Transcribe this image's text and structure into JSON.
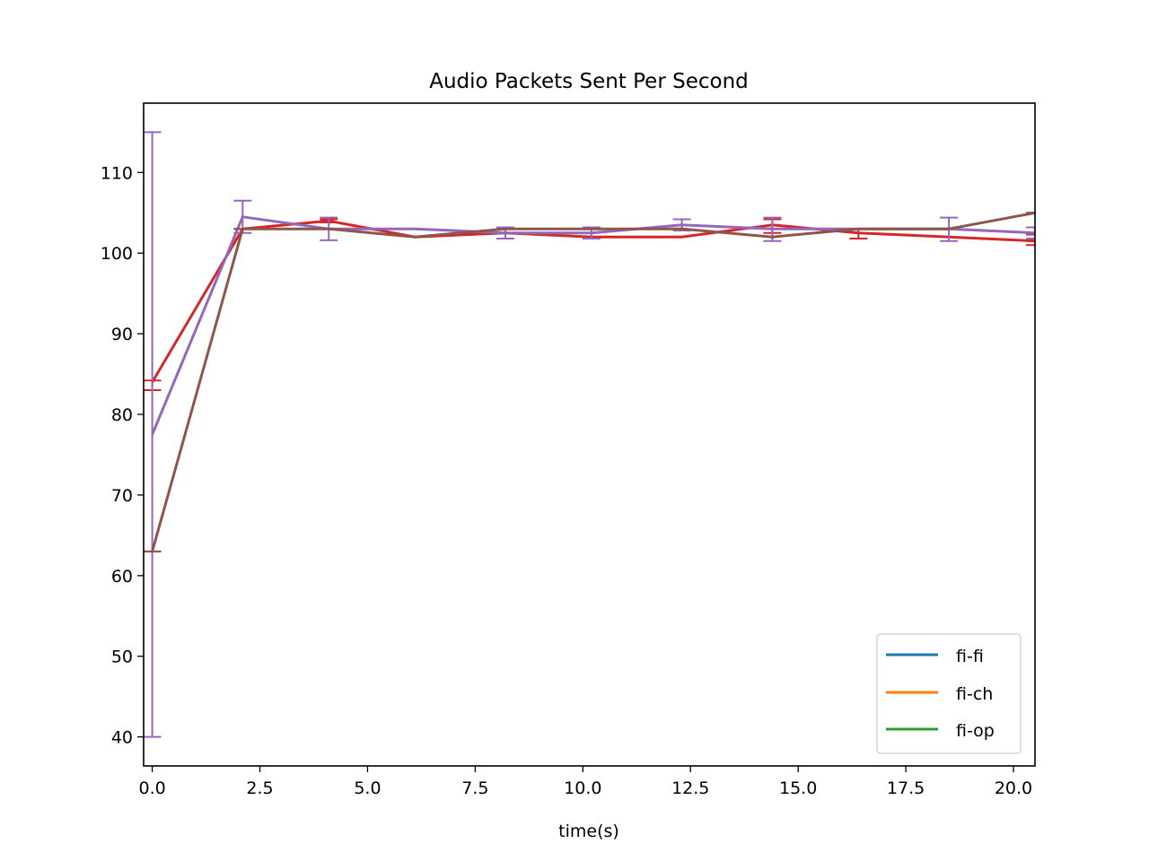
{
  "chart_data": {
    "type": "line",
    "title": "Audio Packets Sent Per Second",
    "xlabel": "time(s)",
    "ylabel": "",
    "xlim": [
      -0.2,
      20.5
    ],
    "ylim": [
      36.4,
      118.6
    ],
    "xticks": [
      0.0,
      2.5,
      5.0,
      7.5,
      10.0,
      12.5,
      15.0,
      17.5,
      20.0
    ],
    "xtick_labels": [
      "0.0",
      "2.5",
      "5.0",
      "7.5",
      "10.0",
      "12.5",
      "15.0",
      "17.5",
      "20.0"
    ],
    "yticks": [
      40,
      50,
      60,
      70,
      80,
      90,
      100,
      110
    ],
    "ytick_labels": [
      "40",
      "50",
      "60",
      "70",
      "80",
      "90",
      "100",
      "110"
    ],
    "grid": false,
    "legend_position": "bottom-right",
    "legend": [
      {
        "label": "fi-fi",
        "color": "#1f77b4"
      },
      {
        "label": "fi-ch",
        "color": "#ff7f0e"
      },
      {
        "label": "fi-op",
        "color": "#2ca02c"
      }
    ],
    "series": [
      {
        "color": "#d62728",
        "x": [
          0.0,
          2.1,
          4.1,
          6.1,
          8.2,
          10.2,
          12.3,
          14.4,
          16.4,
          18.5,
          20.5
        ],
        "y": [
          84.0,
          103.0,
          104.0,
          102.0,
          102.5,
          102.0,
          102.0,
          103.5,
          102.5,
          102.0,
          101.5
        ],
        "err_low": [
          83.0,
          103.0,
          103.8,
          102.0,
          102.5,
          102.0,
          102.0,
          102.5,
          101.8,
          102.0,
          101.0
        ],
        "err_high": [
          84.2,
          103.0,
          104.2,
          102.0,
          102.5,
          102.0,
          102.0,
          104.2,
          103.0,
          102.0,
          102.3
        ],
        "caps_x": [
          0.0,
          4.1,
          14.4,
          16.4,
          20.5
        ]
      },
      {
        "color": "#9467bd",
        "x": [
          0.0,
          2.1,
          4.1,
          6.1,
          8.2,
          10.2,
          12.3,
          14.4,
          16.4,
          18.5,
          20.5
        ],
        "y": [
          77.5,
          104.5,
          103.0,
          103.0,
          102.5,
          102.5,
          103.5,
          103.0,
          103.0,
          103.0,
          102.5
        ],
        "err_low": [
          40.0,
          102.5,
          101.6,
          103.0,
          101.8,
          101.8,
          102.8,
          101.5,
          103.0,
          101.5,
          101.8
        ],
        "err_high": [
          115.0,
          106.5,
          104.4,
          103.0,
          103.2,
          103.2,
          104.2,
          104.4,
          103.0,
          104.4,
          103.2
        ],
        "caps_x": [
          0.0,
          2.1,
          4.1,
          8.2,
          10.2,
          12.3,
          14.4,
          18.5,
          20.5
        ]
      },
      {
        "color": "#8c564b",
        "x": [
          0.0,
          2.1,
          4.1,
          6.1,
          8.2,
          10.2,
          12.3,
          14.4,
          16.4,
          18.5,
          20.5
        ],
        "y": [
          63.0,
          103.0,
          103.0,
          102.0,
          103.0,
          103.0,
          103.0,
          102.0,
          103.0,
          103.0,
          105.0
        ],
        "err_low": [
          63.0,
          103.0,
          103.0,
          102.0,
          103.0,
          103.0,
          103.0,
          102.0,
          103.0,
          103.0,
          105.0
        ],
        "err_high": [
          63.0,
          103.0,
          103.0,
          102.0,
          103.0,
          103.0,
          103.0,
          102.0,
          103.0,
          103.0,
          105.0
        ],
        "caps_x": [
          0.0,
          2.1,
          8.2,
          16.4,
          20.5
        ]
      }
    ]
  }
}
